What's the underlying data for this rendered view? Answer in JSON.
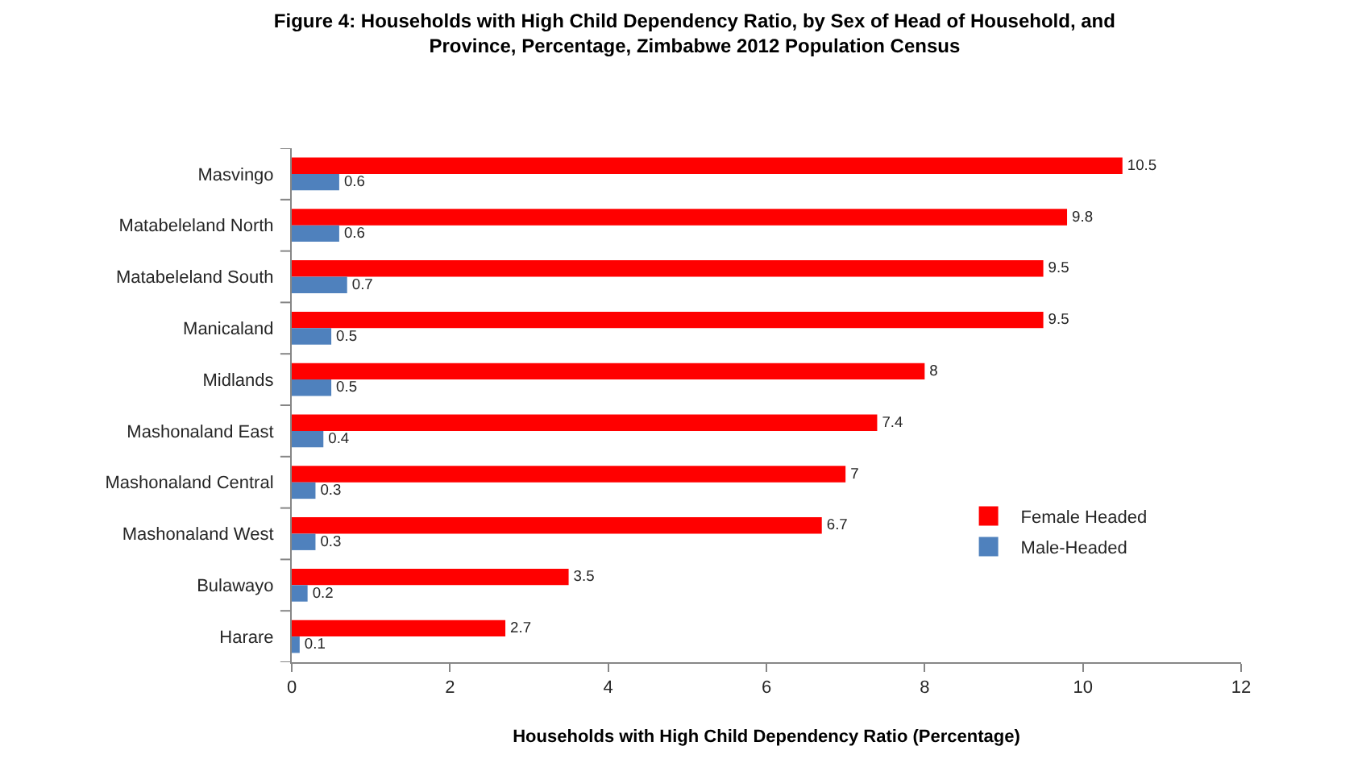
{
  "chart_data": {
    "type": "bar",
    "orientation": "horizontal",
    "title": "Figure 4: Households with High Child Dependency Ratio, by Sex of Head of Household, and Province, Percentage, Zimbabwe 2012 Population Census",
    "xlabel": "Households with High Child Dependency Ratio (Percentage)",
    "categories": [
      "Masvingo",
      "Matabeleland North",
      "Matabeleland South",
      "Manicaland",
      "Midlands",
      "Mashonaland East",
      "Mashonaland Central",
      "Mashonaland West",
      "Bulawayo",
      "Harare"
    ],
    "series": [
      {
        "name": "Female Headed",
        "color": "#ff0000",
        "values": [
          10.5,
          9.8,
          9.5,
          9.5,
          8,
          7.4,
          7,
          6.7,
          3.5,
          2.7
        ]
      },
      {
        "name": "Male-Headed",
        "color": "#4f81bd",
        "values": [
          0.6,
          0.6,
          0.7,
          0.5,
          0.5,
          0.4,
          0.3,
          0.3,
          0.2,
          0.1
        ]
      }
    ],
    "xlim": [
      0,
      12
    ],
    "xticks": [
      0,
      2,
      4,
      6,
      8,
      10,
      12
    ],
    "data_labels": true,
    "legend": "right",
    "grid": false
  }
}
